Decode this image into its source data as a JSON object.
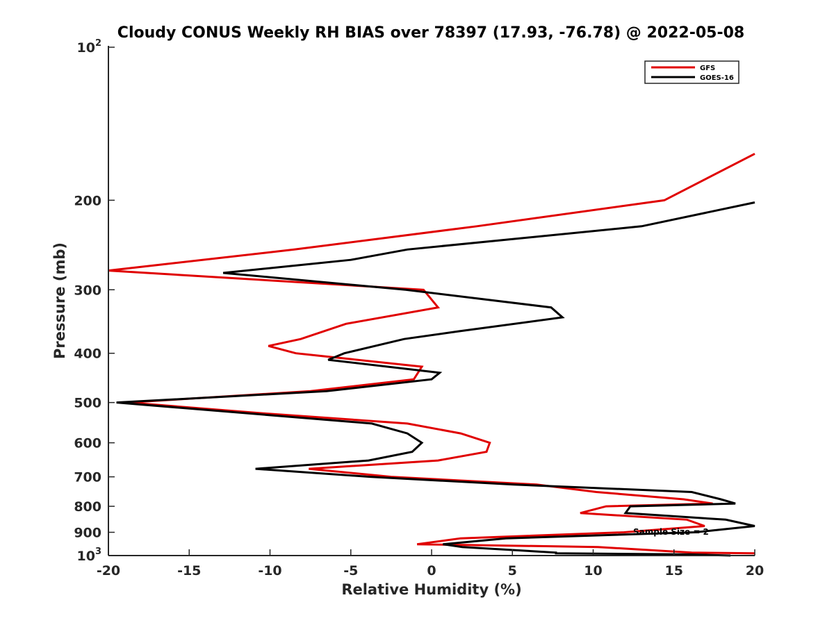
{
  "chart_data": {
    "type": "line",
    "title": "Cloudy CONUS Weekly RH BIAS over 78397 (17.93, -76.78) @ 2022-05-08",
    "xlabel": "Relative Humidity (%)",
    "ylabel": "Pressure (mb)",
    "xlim": [
      -20,
      20
    ],
    "ylim": [
      100,
      1000
    ],
    "y_scale": "log",
    "y_reversed": true,
    "grid": false,
    "legend_position": "top-right",
    "x_ticks": [
      {
        "value": -20,
        "label": "-20"
      },
      {
        "value": -15,
        "label": "-15"
      },
      {
        "value": -10,
        "label": "-10"
      },
      {
        "value": -5,
        "label": "-5"
      },
      {
        "value": 0,
        "label": "0"
      },
      {
        "value": 5,
        "label": "5"
      },
      {
        "value": 10,
        "label": "10"
      },
      {
        "value": 15,
        "label": "15"
      },
      {
        "value": 20,
        "label": "20"
      }
    ],
    "y_ticks": [
      {
        "value": 100,
        "base": "10",
        "exp": "2"
      },
      {
        "value": 200,
        "base": "200",
        "exp": ""
      },
      {
        "value": 300,
        "base": "300",
        "exp": ""
      },
      {
        "value": 400,
        "base": "400",
        "exp": ""
      },
      {
        "value": 500,
        "base": "500",
        "exp": ""
      },
      {
        "value": 600,
        "base": "600",
        "exp": ""
      },
      {
        "value": 700,
        "base": "700",
        "exp": ""
      },
      {
        "value": 800,
        "base": "800",
        "exp": ""
      },
      {
        "value": 900,
        "base": "900",
        "exp": ""
      },
      {
        "value": 1000,
        "base": "10",
        "exp": "3"
      }
    ],
    "series": [
      {
        "name": "GFS",
        "color": "#e00000",
        "points": [
          {
            "x": 20.0,
            "y": 162
          },
          {
            "x": 14.4,
            "y": 200
          },
          {
            "x": 2.8,
            "y": 225
          },
          {
            "x": -8.5,
            "y": 250
          },
          {
            "x": -20.0,
            "y": 275
          },
          {
            "x": -0.5,
            "y": 300
          },
          {
            "x": 0.4,
            "y": 325
          },
          {
            "x": -5.3,
            "y": 350
          },
          {
            "x": -8.1,
            "y": 375
          },
          {
            "x": -10.1,
            "y": 387
          },
          {
            "x": -8.4,
            "y": 400
          },
          {
            "x": -0.6,
            "y": 425
          },
          {
            "x": -1.1,
            "y": 450
          },
          {
            "x": -7.5,
            "y": 475
          },
          {
            "x": -18.8,
            "y": 500
          },
          {
            "x": -10.4,
            "y": 525
          },
          {
            "x": -1.5,
            "y": 550
          },
          {
            "x": 1.8,
            "y": 575
          },
          {
            "x": 3.6,
            "y": 600
          },
          {
            "x": 3.4,
            "y": 625
          },
          {
            "x": 0.4,
            "y": 650
          },
          {
            "x": -7.6,
            "y": 675
          },
          {
            "x": -2.5,
            "y": 700
          },
          {
            "x": 6.5,
            "y": 725
          },
          {
            "x": 10.2,
            "y": 750
          },
          {
            "x": 15.6,
            "y": 775
          },
          {
            "x": 17.4,
            "y": 790
          },
          {
            "x": 10.8,
            "y": 800
          },
          {
            "x": 9.2,
            "y": 825
          },
          {
            "x": 15.8,
            "y": 850
          },
          {
            "x": 16.9,
            "y": 875
          },
          {
            "x": 11.9,
            "y": 900
          },
          {
            "x": 1.8,
            "y": 925
          },
          {
            "x": -0.9,
            "y": 950
          },
          {
            "x": 10.3,
            "y": 962
          },
          {
            "x": 16.1,
            "y": 987
          },
          {
            "x": 20.0,
            "y": 990
          }
        ]
      },
      {
        "name": "GOES-16",
        "color": "#000000",
        "points": [
          {
            "x": 20.0,
            "y": 202
          },
          {
            "x": 13.0,
            "y": 225
          },
          {
            "x": -1.5,
            "y": 250
          },
          {
            "x": -5.0,
            "y": 262
          },
          {
            "x": -12.9,
            "y": 278
          },
          {
            "x": -1.6,
            "y": 300
          },
          {
            "x": 7.4,
            "y": 325
          },
          {
            "x": 8.1,
            "y": 340
          },
          {
            "x": 1.7,
            "y": 362
          },
          {
            "x": -1.7,
            "y": 375
          },
          {
            "x": -5.4,
            "y": 400
          },
          {
            "x": -6.4,
            "y": 412
          },
          {
            "x": 0.5,
            "y": 437
          },
          {
            "x": 0.0,
            "y": 450
          },
          {
            "x": -6.5,
            "y": 475
          },
          {
            "x": -19.5,
            "y": 500
          },
          {
            "x": -3.7,
            "y": 550
          },
          {
            "x": -1.5,
            "y": 575
          },
          {
            "x": -0.6,
            "y": 600
          },
          {
            "x": -1.2,
            "y": 625
          },
          {
            "x": -3.9,
            "y": 650
          },
          {
            "x": -10.9,
            "y": 675
          },
          {
            "x": -3.8,
            "y": 700
          },
          {
            "x": 5.1,
            "y": 725
          },
          {
            "x": 16.1,
            "y": 750
          },
          {
            "x": 17.9,
            "y": 775
          },
          {
            "x": 18.8,
            "y": 790
          },
          {
            "x": 12.3,
            "y": 800
          },
          {
            "x": 12.0,
            "y": 825
          },
          {
            "x": 18.2,
            "y": 850
          },
          {
            "x": 20.0,
            "y": 875
          },
          {
            "x": 16.3,
            "y": 900
          },
          {
            "x": 4.6,
            "y": 925
          },
          {
            "x": 0.7,
            "y": 950
          },
          {
            "x": 1.9,
            "y": 962
          },
          {
            "x": 5.0,
            "y": 975
          },
          {
            "x": 7.7,
            "y": 987
          },
          {
            "x": 7.7,
            "y": 990
          },
          {
            "x": 16.0,
            "y": 995
          },
          {
            "x": 18.5,
            "y": 1000
          }
        ]
      }
    ],
    "annotations": [
      {
        "text": "Sample Size = 2"
      }
    ]
  }
}
